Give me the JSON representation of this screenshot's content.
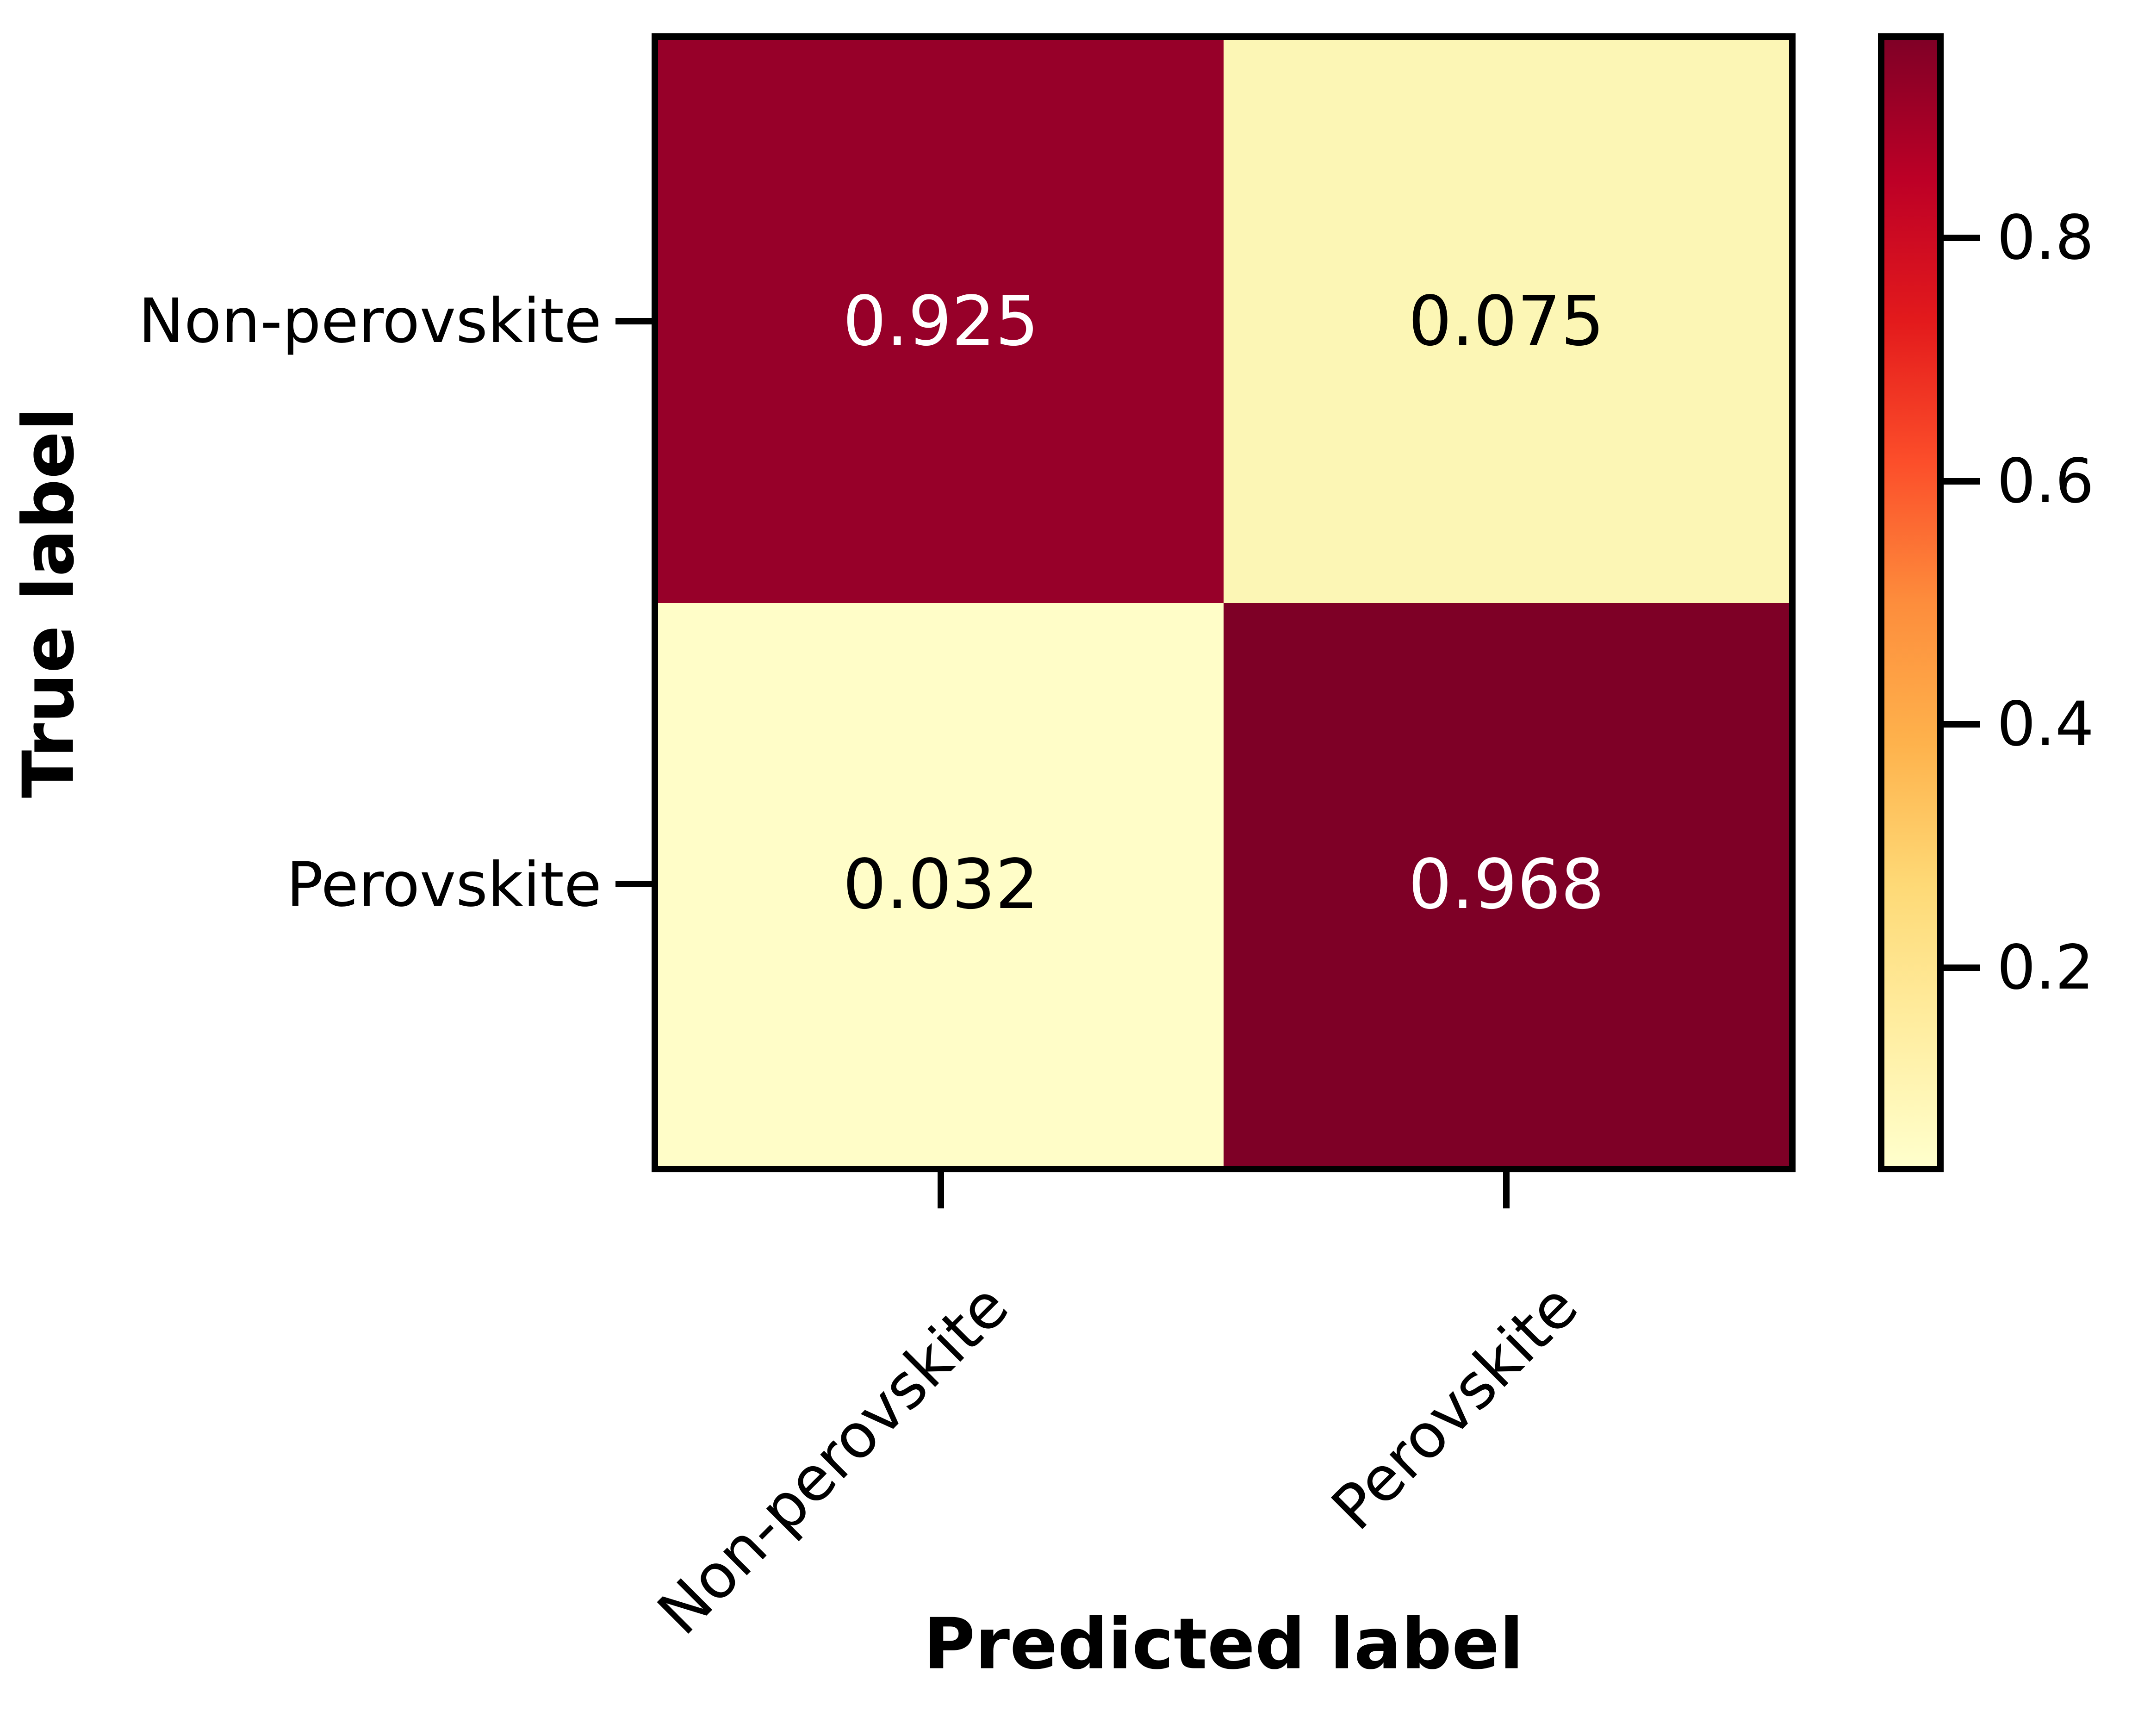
{
  "chart_data": {
    "type": "heatmap",
    "title": "",
    "xlabel": "Predicted label",
    "ylabel": "True label",
    "x_categories": [
      "Non-perovskite",
      "Perovskite"
    ],
    "y_categories": [
      "Non-perovskite",
      "Perovskite"
    ],
    "matrix": [
      [
        0.925,
        0.075
      ],
      [
        0.032,
        0.968
      ]
    ],
    "value_range": [
      0.032,
      0.968
    ],
    "colormap": "YlOrRd",
    "colorbar_ticks": [
      0.8,
      0.6,
      0.4,
      0.2
    ],
    "grid": false,
    "legend_position": "colorbar-right"
  },
  "display": {
    "cell_values": [
      [
        "0.925",
        "0.075"
      ],
      [
        "0.032",
        "0.968"
      ]
    ],
    "colorbar_tick_labels": [
      "0.8",
      "0.6",
      "0.4",
      "0.2"
    ]
  },
  "colors": {
    "cell_r0c0": "#970029",
    "cell_r0c1": "#FCF6B5",
    "cell_r1c0": "#FFFDC8",
    "cell_r1c1": "#7E0026",
    "cell_text_on_dark": "#ffffff",
    "cell_text_on_light": "#000000",
    "spine": "#000000",
    "background": "#ffffff",
    "colorbar_stops_bottom_to_top": [
      "#FFFFCC",
      "#FFEDA0",
      "#FED976",
      "#FEB24C",
      "#FD8D3C",
      "#FC4E2A",
      "#E31A1C",
      "#BD0026",
      "#800026"
    ]
  }
}
